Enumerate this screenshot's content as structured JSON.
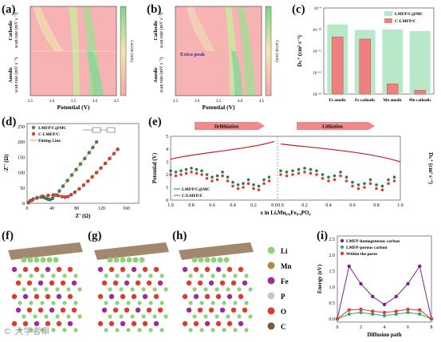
{
  "panels": {
    "a": {
      "label": "(a)",
      "xlabel": "Potential (V)",
      "xticks": [
        "2.5",
        "3.0",
        "3.5",
        "4.0",
        "4.5"
      ],
      "ylabel_top": "Cathodic",
      "ylabel_bottom": "Anodic",
      "ylabel_unit": "scan rate (mV s⁻¹)",
      "yticks_top": [
        "0.3",
        "0.25",
        "0.2",
        "0.15",
        "0.1",
        "0.05"
      ],
      "yticks_bottom": [
        "0.05",
        "0.1",
        "0.15",
        "0.2",
        "0.25",
        "0.3"
      ],
      "colorbar_label": "Current (mA)"
    },
    "b": {
      "label": "(b)",
      "xlabel": "Potential (V)",
      "xticks": [
        "2.5",
        "3.0",
        "3.5",
        "4.0",
        "4.5"
      ],
      "ylabel_top": "Cathodic",
      "ylabel_bottom": "Anodic",
      "ylabel_unit": "scan rate (mV s⁻¹)",
      "annotation": "Extra peak",
      "colorbar_label": "Current (mA)"
    },
    "c": {
      "label": "(c)"
    },
    "d": {
      "label": "(d)",
      "xlabel": "Z' (Ω)",
      "ylabel": "-Z'' (Ω)",
      "legend": [
        "LMFP/C@MC",
        "C-LMFP/C",
        "Fitting Line"
      ]
    },
    "e": {
      "label": "(e)",
      "xlabel": "x in LiₓMn₀.₆Fe₀.₄PO₄",
      "ylabel": "Potential (V)",
      "ylabel_right": "Dₗᵢ⁺ (cm² s⁻¹)",
      "arrow_left": "Delithiation",
      "arrow_right": "Lithiation",
      "legend": [
        "LMFP/C@MC",
        "C/LMFP/C"
      ]
    },
    "f": {
      "label": "(f)"
    },
    "g": {
      "label": "(g)"
    },
    "h": {
      "label": "(h)"
    },
    "atoms_legend": [
      {
        "name": "Li",
        "color": "#8fd07a"
      },
      {
        "name": "Mn",
        "color": "#b08a3a"
      },
      {
        "name": "Fe",
        "color": "#a02a9a"
      },
      {
        "name": "P",
        "color": "#c8c8c8"
      },
      {
        "name": "O",
        "color": "#e03a2a"
      },
      {
        "name": "C",
        "color": "#7a5a3a"
      }
    ],
    "i": {
      "label": "(i)"
    }
  },
  "chart_data": [
    {
      "type": "bar",
      "panel": "c",
      "categories": [
        "Fe anodic",
        "Fe cathodic",
        "Mn anodic",
        "Mn cathodic"
      ],
      "series": [
        {
          "name": "LMFP/C@MC",
          "values": [
            1.7e-10,
            9.5e-11,
            1e-10,
            8.5e-11
          ],
          "color": "#b7e8c8"
        },
        {
          "name": "C-LMFP/C",
          "values": [
            4.5e-11,
            3.6e-11,
            3e-13,
            1.5e-13
          ],
          "color": "#ef8080"
        }
      ],
      "ylabel": "Dₗᵢ⁺ (cm² s⁻¹)",
      "ylim": [
        1e-13,
        1e-09
      ],
      "yscale": "log",
      "yticks": [
        "10⁻¹³",
        "10⁻¹²",
        "10⁻¹¹",
        "10⁻¹⁰",
        "10⁻⁹"
      ],
      "legend": "top-right"
    },
    {
      "type": "scatter",
      "panel": "d",
      "xlabel": "Z' (Ω)",
      "ylabel": "-Z'' (Ω)",
      "xlim": [
        0,
        180
      ],
      "ylim": [
        0,
        260
      ],
      "xticks": [
        0,
        40,
        80,
        120,
        160
      ],
      "yticks": [
        0,
        50,
        100,
        150,
        200,
        250
      ],
      "series": [
        {
          "name": "LMFP/C@MC",
          "color": "#3a8a5a",
          "x": [
            2,
            5,
            10,
            16,
            22,
            27,
            31,
            34,
            37,
            41,
            46,
            52,
            58,
            65,
            72,
            79,
            86,
            93,
            100,
            106,
            112
          ],
          "y": [
            2,
            8,
            14,
            18,
            20,
            19,
            16,
            13,
            12,
            16,
            27,
            40,
            56,
            74,
            92,
            110,
            128,
            146,
            165,
            182,
            200
          ]
        },
        {
          "name": "C-LMFP/C",
          "color": "#e03a3a",
          "x": [
            2,
            8,
            16,
            25,
            34,
            42,
            50,
            56,
            61,
            66,
            71,
            77,
            84,
            91,
            98,
            105,
            112,
            119,
            126,
            133,
            140,
            146
          ],
          "y": [
            2,
            10,
            17,
            23,
            26,
            27,
            25,
            22,
            20,
            22,
            28,
            36,
            47,
            59,
            72,
            86,
            100,
            115,
            130,
            146,
            162,
            176
          ]
        }
      ],
      "legend": "top-left"
    },
    {
      "type": "line",
      "panel": "e",
      "xlabel": "x in LiₓMn₀.₆Fe₀.₄PO₄",
      "ylabel": "Potential (V)",
      "ylim": [
        0,
        5
      ],
      "yticks": [
        0,
        1,
        2,
        3,
        4,
        5
      ],
      "xticks_left": [
        "1.0",
        "0.8",
        "0.6",
        "0.4",
        "0.2",
        "0.0"
      ],
      "xticks_right": [
        "0.0",
        "0.2",
        "0.4",
        "0.6",
        "0.8",
        "1.0"
      ],
      "series": [
        {
          "name": "LMFP/C@MC",
          "color": "#2a7a4a",
          "x": [
            1.0,
            0.95,
            0.9,
            0.85,
            0.8,
            0.75,
            0.7,
            0.65,
            0.6,
            0.55,
            0.5,
            0.45,
            0.4,
            0.35,
            0.3,
            0.25,
            0.2,
            0.15,
            0.1,
            0.05
          ],
          "y": [
            2.3,
            2.2,
            2.3,
            2.4,
            2.5,
            2.4,
            2.3,
            2.0,
            1.8,
            1.9,
            2.2,
            1.8,
            1.4,
            1.2,
            1.3,
            1.6,
            1.2,
            1.1,
            1.6,
            1.8
          ]
        },
        {
          "name": "C/LMFP/C",
          "color": "#e03a3a",
          "x": [
            1.0,
            0.95,
            0.9,
            0.85,
            0.8,
            0.75,
            0.7,
            0.65,
            0.6,
            0.55,
            0.5,
            0.45,
            0.4,
            0.35,
            0.3,
            0.25,
            0.2,
            0.15,
            0.1,
            0.05
          ],
          "y": [
            2.0,
            1.9,
            2.0,
            2.1,
            2.2,
            2.1,
            2.0,
            1.7,
            1.5,
            1.6,
            1.9,
            1.5,
            1.1,
            0.9,
            1.0,
            1.3,
            0.9,
            0.8,
            1.3,
            1.5
          ]
        }
      ],
      "legend": "bottom-left"
    },
    {
      "type": "line",
      "panel": "i",
      "xlabel": "Diffusion path",
      "ylabel": "Energy (eV)",
      "xlim": [
        0,
        8
      ],
      "ylim": [
        -0.1,
        2.6
      ],
      "xticks": [
        0,
        2,
        4,
        6,
        8
      ],
      "yticks": [
        0.0,
        0.5,
        1.0,
        1.5,
        2.0,
        2.5
      ],
      "series": [
        {
          "name": "LMFP-homogeneous carbon",
          "color": "#7a1f8a",
          "x": [
            0,
            1,
            2,
            3,
            4,
            5,
            6,
            7,
            8
          ],
          "y": [
            0.0,
            1.65,
            1.1,
            0.7,
            0.45,
            0.7,
            1.1,
            1.65,
            0.0
          ]
        },
        {
          "name": "LMFP-porous carbon",
          "color": "#3aa56a",
          "x": [
            0,
            1,
            2,
            3,
            4,
            5,
            6,
            7,
            8
          ],
          "y": [
            0.0,
            0.15,
            0.2,
            0.15,
            0.1,
            0.15,
            0.2,
            0.15,
            0.0
          ]
        },
        {
          "name": "Within the pores",
          "color": "#e03a3a",
          "x": [
            0,
            1,
            2,
            3,
            4,
            5,
            6,
            7,
            8
          ],
          "y": [
            0.0,
            0.28,
            0.3,
            0.24,
            0.2,
            0.24,
            0.3,
            0.28,
            0.0
          ]
        }
      ],
      "legend": "top-left"
    }
  ],
  "watermark": "© 大学者审"
}
